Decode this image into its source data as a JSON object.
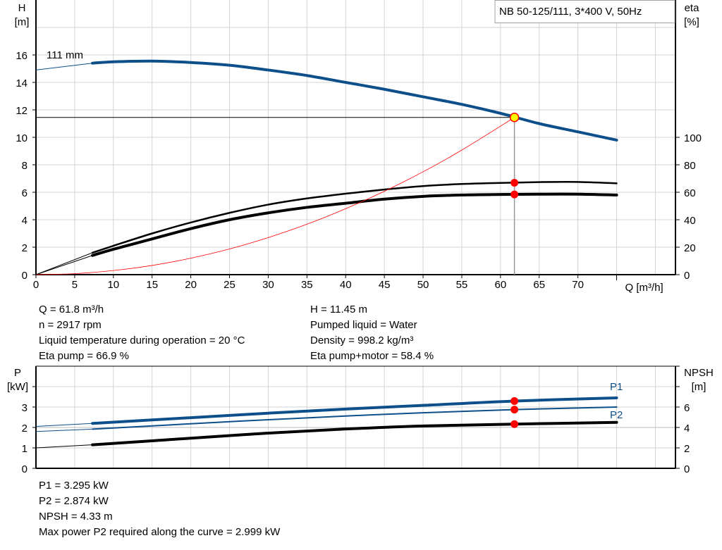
{
  "colors": {
    "qh": "#0d4f8b",
    "eta": "#000000",
    "system": "#ff0000",
    "duty_point_fill": "#ffff00",
    "marker": "#ff0000",
    "grid": "#d3d3d3",
    "p1": "#0d4f8b",
    "p2": "#0d4f8b",
    "npsh": "#000000"
  },
  "legend_box": "NB 50-125/111, 3*400 V, 50Hz",
  "info_top": {
    "left": [
      "Q = 61.8 m³/h",
      "n = 2917 rpm",
      "Liquid temperature during operation = 20 °C",
      "Eta pump = 66.9 %"
    ],
    "right": [
      "H = 11.45 m",
      "Pumped liquid = Water",
      "Density = 998.2 kg/m³",
      "Eta pump+motor = 58.4 %"
    ]
  },
  "info_bottom": [
    "P1 = 3.295 kW",
    "P2 = 2.874 kW",
    "NPSH = 4.33 m",
    "Max power P2 required along the curve = 2.999 kW"
  ],
  "chart_data": [
    {
      "type": "line",
      "xlabel": "Q [m³/h]",
      "ylabel": "H\n[m]",
      "ylabel_right": "eta\n[%]",
      "xlim": [
        0,
        80
      ],
      "ylim": [
        0,
        20
      ],
      "ylim_right": [
        0,
        200
      ],
      "x_ticks": [
        "0",
        "5",
        "10",
        "15",
        "20",
        "25",
        "30",
        "35",
        "40",
        "45",
        "50",
        "55",
        "60",
        "65",
        "70"
      ],
      "y_ticks": [
        "0",
        "2",
        "4",
        "6",
        "8",
        "10",
        "12",
        "14",
        "16"
      ],
      "y_right_ticks": [
        "0",
        "20",
        "40",
        "60",
        "80",
        "100"
      ],
      "grid": true,
      "curve_label": "111 mm",
      "duty_point": {
        "Q": 61.8,
        "H": 11.45,
        "eta_pump": 66.9,
        "eta_pump_motor": 58.4
      },
      "series": [
        {
          "key": "qh",
          "axis": "left",
          "thin_until": 7.3,
          "x": [
            0,
            7.3,
            10,
            15,
            20,
            25,
            30,
            35,
            40,
            45,
            50,
            55,
            60,
            65,
            70,
            75
          ],
          "y": [
            14.9,
            15.4,
            15.5,
            15.55,
            15.45,
            15.25,
            14.9,
            14.5,
            14.0,
            13.5,
            12.95,
            12.4,
            11.75,
            11.0,
            10.4,
            9.8
          ]
        },
        {
          "key": "eta_pump",
          "axis": "right",
          "thin_until": 7.3,
          "x": [
            0,
            7.3,
            10,
            15,
            20,
            25,
            30,
            35,
            40,
            45,
            50,
            55,
            60,
            65,
            70,
            75
          ],
          "y": [
            0,
            16,
            21,
            30,
            38,
            45,
            51,
            55.5,
            59,
            62,
            64.5,
            66,
            66.8,
            67.4,
            67.5,
            66.5
          ]
        },
        {
          "key": "eta_pump_motor",
          "axis": "right",
          "thin_until": 7.3,
          "x": [
            0,
            7.3,
            10,
            15,
            20,
            25,
            30,
            35,
            40,
            45,
            50,
            55,
            60,
            65,
            70,
            75
          ],
          "y": [
            0,
            14,
            18.5,
            26,
            33.5,
            40,
            45,
            49,
            52,
            55,
            57,
            58,
            58.4,
            58.6,
            58.6,
            58
          ]
        },
        {
          "key": "system",
          "axis": "left",
          "x": [
            0,
            5,
            10,
            15,
            20,
            25,
            30,
            35,
            40,
            45,
            50,
            55,
            61.8
          ],
          "y": [
            0,
            0.07,
            0.3,
            0.67,
            1.2,
            1.87,
            2.7,
            3.67,
            4.8,
            6.07,
            7.49,
            9.07,
            11.45
          ]
        }
      ]
    },
    {
      "type": "line",
      "ylabel": "P\n[kW]",
      "ylabel_right": "NPSH\n[m]",
      "xlim": [
        0,
        80
      ],
      "ylim": [
        0,
        5
      ],
      "ylim_right": [
        0,
        10
      ],
      "y_ticks": [
        "0",
        "1",
        "2",
        "3"
      ],
      "y_right_ticks": [
        "0",
        "2",
        "4",
        "6"
      ],
      "grid": true,
      "duty_point": {
        "Q": 61.8,
        "P1": 3.295,
        "P2": 2.874,
        "NPSH": 4.33
      },
      "series": [
        {
          "key": "p1",
          "name": "P1",
          "axis": "left",
          "thin_until": 7.3,
          "x": [
            0,
            7.3,
            20,
            30,
            40,
            50,
            61.8,
            75
          ],
          "y": [
            2.05,
            2.2,
            2.48,
            2.7,
            2.9,
            3.08,
            3.295,
            3.45
          ]
        },
        {
          "key": "p2",
          "name": "P2",
          "axis": "left",
          "thin_until": 7.3,
          "x": [
            0,
            7.3,
            20,
            30,
            40,
            50,
            61.8,
            75
          ],
          "y": [
            1.8,
            1.92,
            2.18,
            2.38,
            2.56,
            2.72,
            2.874,
            3.0
          ]
        },
        {
          "key": "npsh",
          "axis": "right",
          "thin_until": 7.3,
          "x": [
            0,
            7.3,
            20,
            30,
            40,
            50,
            61.8,
            75
          ],
          "y": [
            2.0,
            2.3,
            2.95,
            3.45,
            3.85,
            4.15,
            4.33,
            4.5
          ]
        }
      ]
    }
  ]
}
